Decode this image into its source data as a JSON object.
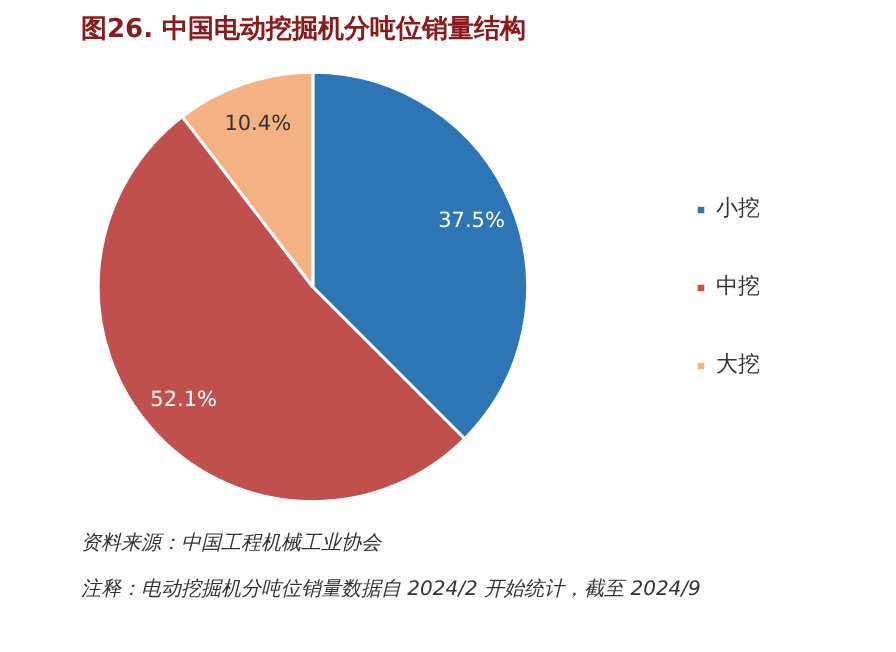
{
  "chart_data": {
    "type": "pie",
    "title": "图26. 中国电动挖掘机分吨位销量结构",
    "categories": [
      "小挖",
      "中挖",
      "大挖"
    ],
    "values": [
      37.5,
      52.1,
      10.4
    ],
    "colors": [
      "#2e75b6",
      "#c0504d",
      "#f4b183"
    ],
    "value_labels": [
      "37.5%",
      "52.1%",
      "10.4%"
    ],
    "legend": "right",
    "annotations": [
      "资料来源：中国工程机械工业协会",
      "注释：电动挖掘机分吨位销量数据自 2024/2 开始统计，截至 2024/9"
    ]
  }
}
